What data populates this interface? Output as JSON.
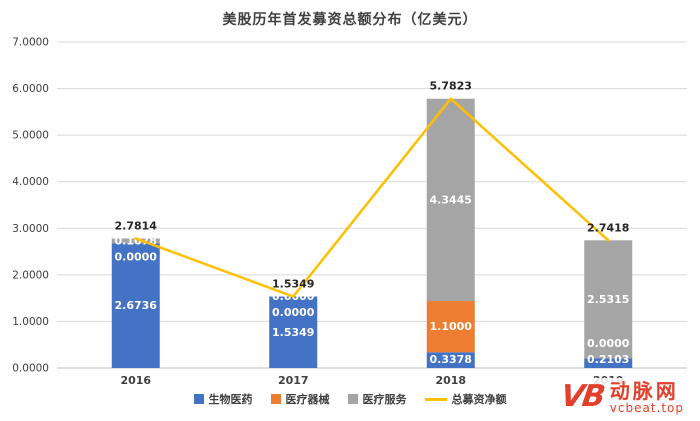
{
  "title": "美股历年首发募资总额分布（亿美元）",
  "chart_data": {
    "type": "bar",
    "stacked": true,
    "title": "美股历年首发募资总额分布（亿美元）",
    "categories": [
      "2016",
      "2017",
      "2018",
      "2019"
    ],
    "series": [
      {
        "key": "biopharma",
        "name": "生物医药",
        "color": "#4472C4",
        "values": [
          2.6736,
          1.5349,
          0.3378,
          0.2103
        ]
      },
      {
        "key": "devices",
        "name": "医疗器械",
        "color": "#ED7D31",
        "values": [
          0.0,
          0.0,
          1.1,
          0.0
        ]
      },
      {
        "key": "services",
        "name": "医疗服务",
        "color": "#A5A5A5",
        "values": [
          0.1078,
          0.0,
          4.3445,
          2.5315
        ]
      }
    ],
    "line": {
      "key": "total-net",
      "name": "总募资净额",
      "color": "#FFC000",
      "values": [
        2.7814,
        1.5349,
        5.7823,
        2.7418
      ]
    },
    "xlabel": "",
    "ylabel": "",
    "ylim": [
      0,
      7
    ],
    "ytick_step": 1,
    "ytick_format_decimals": 4,
    "grid": true,
    "grid_color": "#D9D9D9",
    "axis_color": "#BFBFBF",
    "tick_label_color": "#404040",
    "bar_label_color": "#FFFFFF",
    "line_label_color": "#262626",
    "legend_position": "bottom"
  },
  "watermark": {
    "brand": "动脉网",
    "url": "vcbeat.top",
    "color": "#E2402C",
    "logo_text": "VB"
  }
}
